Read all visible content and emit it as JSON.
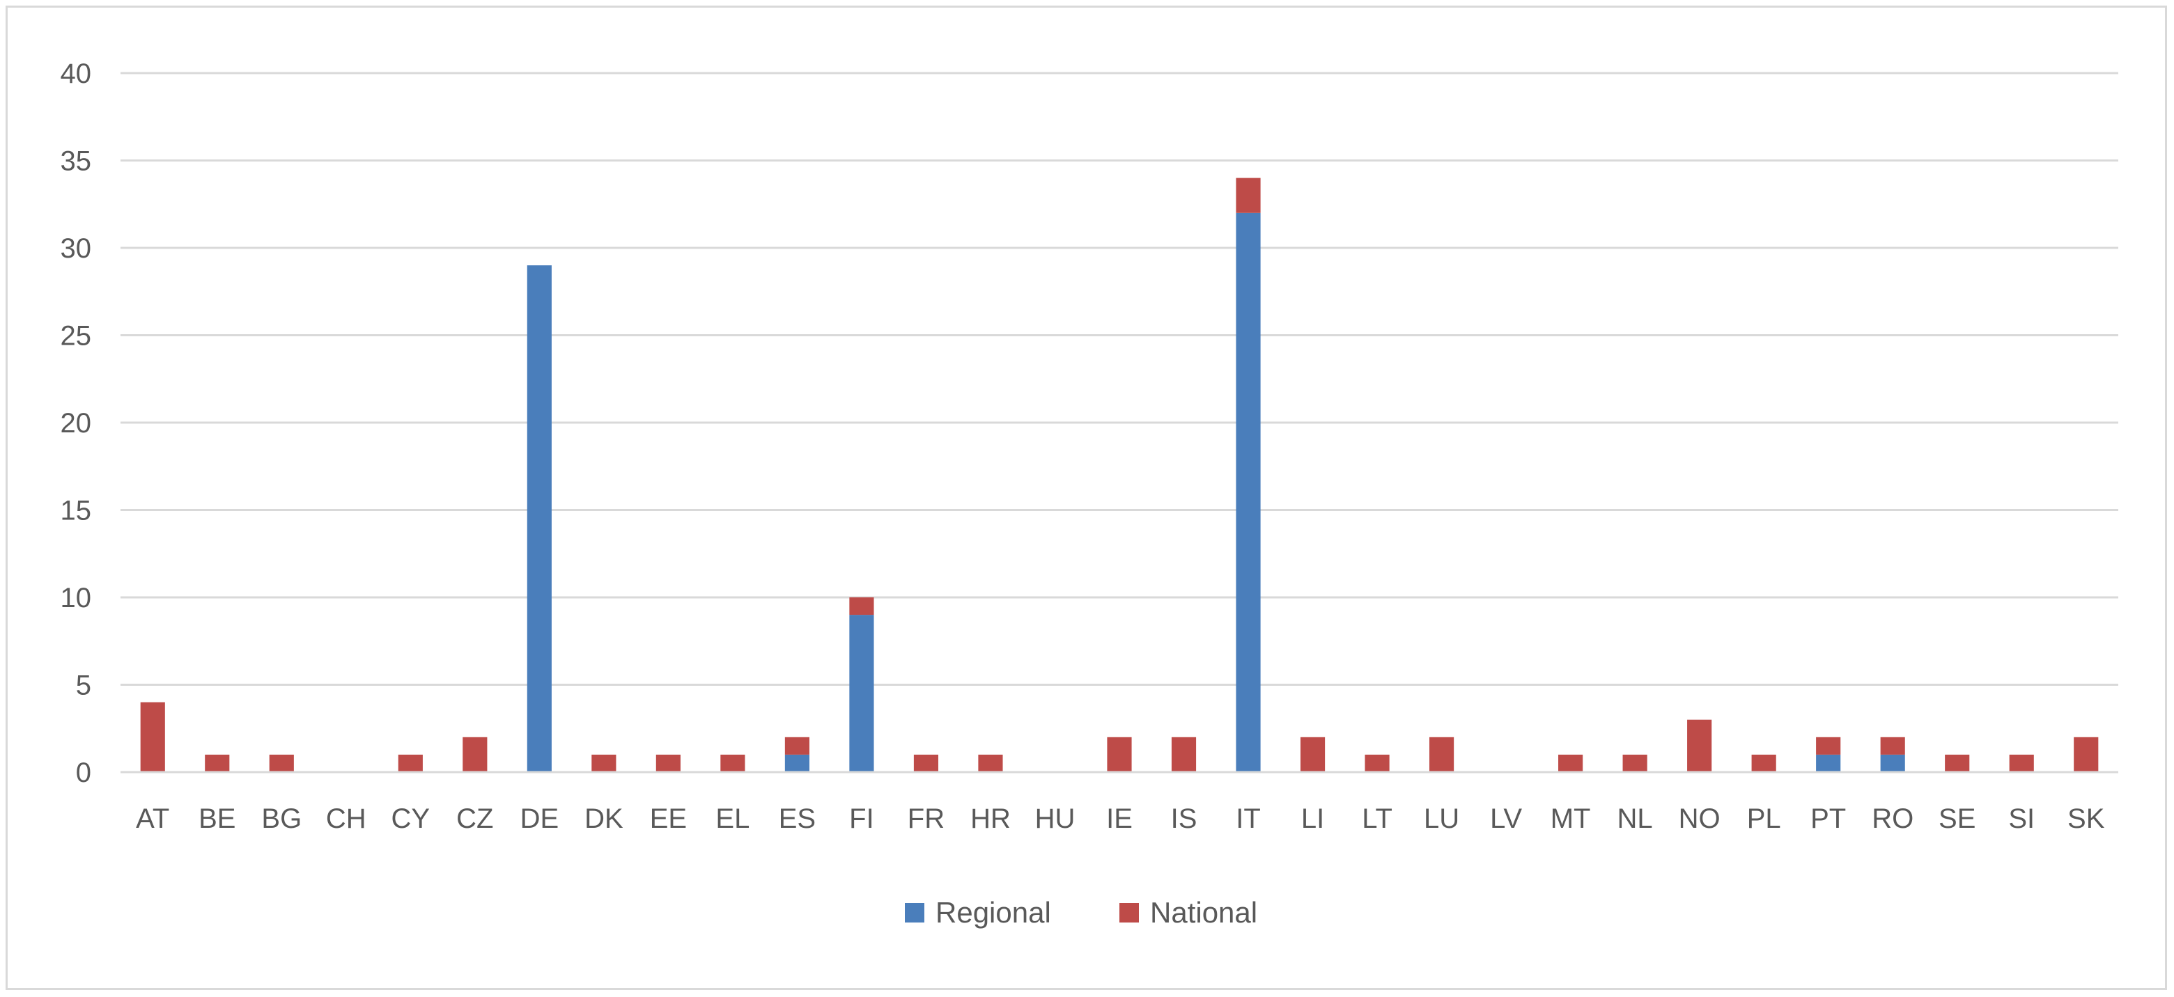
{
  "chart_data": {
    "type": "bar",
    "stacked": true,
    "title": "",
    "xlabel": "",
    "ylabel": "",
    "categories": [
      "AT",
      "BE",
      "BG",
      "CH",
      "CY",
      "CZ",
      "DE",
      "DK",
      "EE",
      "EL",
      "ES",
      "FI",
      "FR",
      "HR",
      "HU",
      "IE",
      "IS",
      "IT",
      "LI",
      "LT",
      "LU",
      "LV",
      "MT",
      "NL",
      "NO",
      "PL",
      "PT",
      "RO",
      "SE",
      "SI",
      "SK"
    ],
    "series": [
      {
        "name": "Regional",
        "color": "#4a7ebb",
        "values": [
          0,
          0,
          0,
          0,
          0,
          0,
          29,
          0,
          0,
          0,
          1,
          9,
          0,
          0,
          0,
          0,
          0,
          32,
          0,
          0,
          0,
          0,
          0,
          0,
          0,
          0,
          1,
          1,
          0,
          0,
          0
        ]
      },
      {
        "name": "National",
        "color": "#be4b48",
        "values": [
          4,
          1,
          1,
          0,
          1,
          2,
          0,
          1,
          1,
          1,
          1,
          1,
          1,
          1,
          0,
          2,
          2,
          2,
          2,
          1,
          2,
          0,
          1,
          1,
          3,
          1,
          1,
          1,
          1,
          1,
          2
        ]
      }
    ],
    "ylim": [
      0,
      40
    ],
    "yticks": [
      0,
      5,
      10,
      15,
      20,
      25,
      30,
      35,
      40
    ],
    "grid": true,
    "legend_position": "bottom"
  }
}
